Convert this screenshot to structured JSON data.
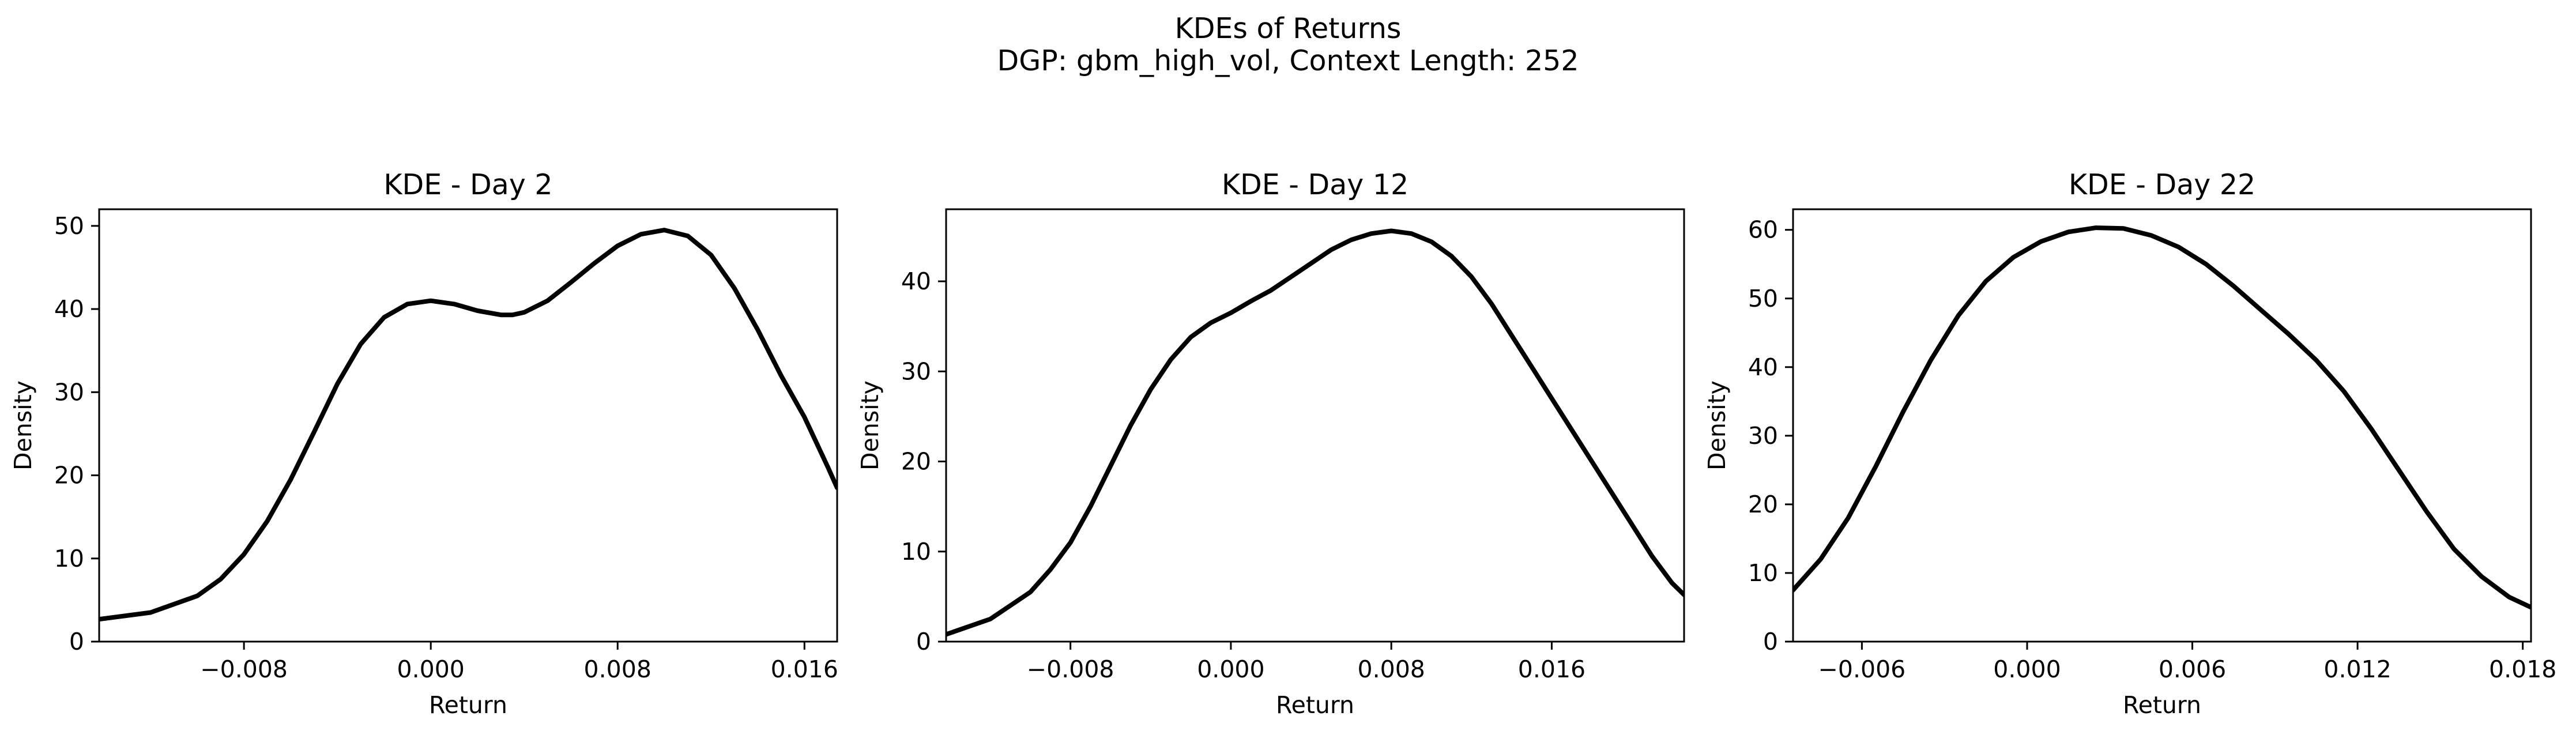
{
  "figure": {
    "suptitle_line1": "KDEs of Returns",
    "suptitle_line2": "DGP: gbm_high_vol, Context Length: 252"
  },
  "chart_data": [
    {
      "type": "line",
      "title": "KDE - Day 2",
      "xlabel": "Return",
      "ylabel": "Density",
      "xlim": [
        -0.0142,
        0.0174
      ],
      "ylim": [
        0,
        52
      ],
      "xticks": [
        -0.008,
        0.0,
        0.008,
        0.016
      ],
      "xtick_labels": [
        "−0.008",
        "0.000",
        "0.008",
        "0.016"
      ],
      "yticks": [
        0,
        10,
        20,
        30,
        40,
        50
      ],
      "ytick_labels": [
        "0",
        "10",
        "20",
        "30",
        "40",
        "50"
      ],
      "grid": false,
      "color": "#000000",
      "x": [
        -0.0142,
        -0.012,
        -0.01,
        -0.009,
        -0.008,
        -0.007,
        -0.006,
        -0.005,
        -0.004,
        -0.003,
        -0.002,
        -0.001,
        0.0,
        0.001,
        0.002,
        0.003,
        0.0035,
        0.004,
        0.005,
        0.006,
        0.007,
        0.008,
        0.009,
        0.01,
        0.011,
        0.012,
        0.013,
        0.014,
        0.015,
        0.016,
        0.017,
        0.0174
      ],
      "y": [
        2.7,
        3.5,
        5.5,
        7.5,
        10.5,
        14.5,
        19.5,
        25.2,
        31.0,
        35.8,
        39.0,
        40.6,
        41.0,
        40.6,
        39.8,
        39.3,
        39.3,
        39.6,
        41.0,
        43.2,
        45.5,
        47.6,
        49.0,
        49.5,
        48.8,
        46.5,
        42.5,
        37.5,
        32.0,
        27.0,
        21.0,
        18.5
      ]
    },
    {
      "type": "line",
      "title": "KDE - Day 12",
      "xlabel": "Return",
      "ylabel": "Density",
      "xlim": [
        -0.0142,
        0.0226
      ],
      "ylim": [
        0,
        48
      ],
      "xticks": [
        -0.008,
        0.0,
        0.008,
        0.016
      ],
      "xtick_labels": [
        "−0.008",
        "0.000",
        "0.008",
        "0.016"
      ],
      "yticks": [
        0,
        10,
        20,
        30,
        40
      ],
      "ytick_labels": [
        "0",
        "10",
        "20",
        "30",
        "40"
      ],
      "grid": false,
      "color": "#000000",
      "x": [
        -0.0142,
        -0.012,
        -0.01,
        -0.009,
        -0.008,
        -0.007,
        -0.006,
        -0.005,
        -0.004,
        -0.003,
        -0.002,
        -0.001,
        0.0,
        0.001,
        0.002,
        0.003,
        0.004,
        0.005,
        0.006,
        0.007,
        0.008,
        0.009,
        0.01,
        0.011,
        0.012,
        0.013,
        0.014,
        0.015,
        0.016,
        0.017,
        0.018,
        0.019,
        0.02,
        0.021,
        0.022,
        0.0226
      ],
      "y": [
        0.8,
        2.5,
        5.5,
        8.0,
        11.0,
        15.0,
        19.5,
        24.0,
        28.0,
        31.3,
        33.8,
        35.4,
        36.5,
        37.8,
        39.0,
        40.5,
        42.0,
        43.5,
        44.6,
        45.3,
        45.6,
        45.3,
        44.4,
        42.8,
        40.5,
        37.5,
        34.0,
        30.5,
        27.0,
        23.5,
        20.0,
        16.5,
        13.0,
        9.5,
        6.5,
        5.2
      ]
    },
    {
      "type": "line",
      "title": "KDE - Day 22",
      "xlabel": "Return",
      "ylabel": "Density",
      "xlim": [
        -0.0085,
        0.0183
      ],
      "ylim": [
        0,
        63
      ],
      "xticks": [
        -0.006,
        0.0,
        0.006,
        0.012,
        0.018
      ],
      "xtick_labels": [
        "−0.006",
        "0.000",
        "0.006",
        "0.012",
        "0.018"
      ],
      "yticks": [
        0,
        10,
        20,
        30,
        40,
        50,
        60
      ],
      "ytick_labels": [
        "0",
        "10",
        "20",
        "30",
        "40",
        "50",
        "60"
      ],
      "grid": false,
      "color": "#000000",
      "x": [
        -0.0085,
        -0.0075,
        -0.0065,
        -0.0055,
        -0.0045,
        -0.0035,
        -0.0025,
        -0.0015,
        -0.0005,
        0.0005,
        0.0015,
        0.0025,
        0.0035,
        0.0045,
        0.0055,
        0.0065,
        0.0075,
        0.0085,
        0.0095,
        0.0105,
        0.0115,
        0.0125,
        0.0135,
        0.0145,
        0.0155,
        0.0165,
        0.0175,
        0.0183
      ],
      "y": [
        7.5,
        12.0,
        18.0,
        25.5,
        33.5,
        41.0,
        47.5,
        52.5,
        56.0,
        58.3,
        59.7,
        60.3,
        60.2,
        59.2,
        57.5,
        55.0,
        51.8,
        48.3,
        44.8,
        41.0,
        36.5,
        31.0,
        25.0,
        19.0,
        13.5,
        9.5,
        6.5,
        5.0
      ]
    }
  ]
}
